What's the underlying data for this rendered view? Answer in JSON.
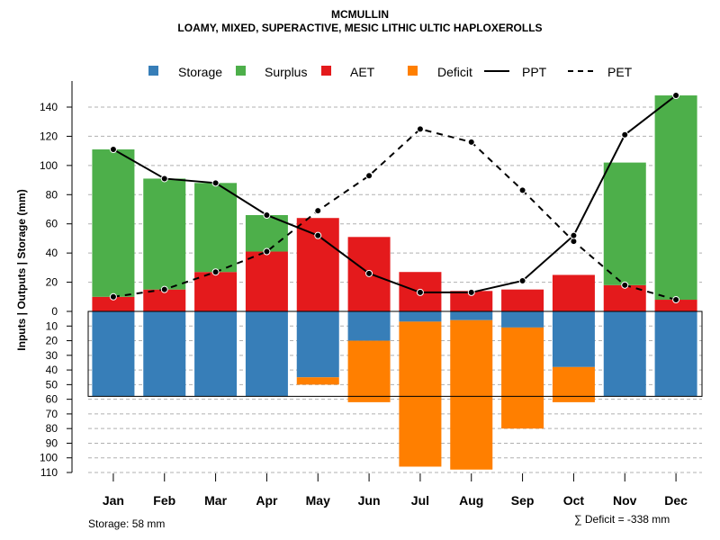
{
  "header": {
    "title": "MCMULLIN",
    "subtitle": "LOAMY, MIXED, SUPERACTIVE, MESIC LITHIC ULTIC HAPLOXEROLLS"
  },
  "legend": {
    "storage": "Storage",
    "surplus": "Surplus",
    "aet": "AET",
    "deficit": "Deficit",
    "ppt": "PPT",
    "pet": "PET"
  },
  "footer": {
    "storage_note": "Storage: 58 mm",
    "deficit_note": "∑ Deficit = -338 mm"
  },
  "colors": {
    "storage": "#377eb8",
    "surplus": "#4daf4a",
    "aet": "#e41a1c",
    "deficit": "#ff7f00",
    "line": "#000000",
    "grid": "#b0b0b0"
  },
  "chart_data": {
    "type": "bar",
    "title": "MCMULLIN",
    "subtitle": "LOAMY, MIXED, SUPERACTIVE, MESIC LITHIC ULTIC HAPLOXEROLLS",
    "ylabel": "Inputs | Outputs | Storage    (mm)",
    "categories": [
      "Jan",
      "Feb",
      "Mar",
      "Apr",
      "May",
      "Jun",
      "Jul",
      "Aug",
      "Sep",
      "Oct",
      "Nov",
      "Dec"
    ],
    "ylim": [
      -110,
      150
    ],
    "y_ticks_positive": [
      0,
      20,
      40,
      60,
      80,
      100,
      120,
      140
    ],
    "y_ticks_negative": [
      10,
      20,
      30,
      40,
      50,
      60,
      70,
      80,
      90,
      100,
      110
    ],
    "soil_storage_capacity": 58,
    "series": [
      {
        "name": "AET",
        "values": [
          10,
          15,
          27,
          41,
          64,
          51,
          27,
          14,
          15,
          25,
          18,
          8
        ]
      },
      {
        "name": "Surplus",
        "values": [
          101,
          76,
          61,
          25,
          0,
          0,
          0,
          0,
          0,
          0,
          84,
          140
        ]
      },
      {
        "name": "Storage",
        "values": [
          58,
          58,
          58,
          58,
          45,
          20,
          7,
          6,
          11,
          38,
          58,
          58
        ]
      },
      {
        "name": "Deficit",
        "values": [
          0,
          0,
          0,
          0,
          5,
          42,
          99,
          102,
          69,
          24,
          0,
          0
        ]
      },
      {
        "name": "PPT",
        "values": [
          111,
          91,
          88,
          66,
          52,
          26,
          13,
          13,
          21,
          52,
          121,
          148
        ]
      },
      {
        "name": "PET",
        "values": [
          10,
          15,
          27,
          41,
          69,
          93,
          125,
          116,
          83,
          48,
          18,
          8
        ]
      }
    ],
    "legend_position": "top"
  }
}
